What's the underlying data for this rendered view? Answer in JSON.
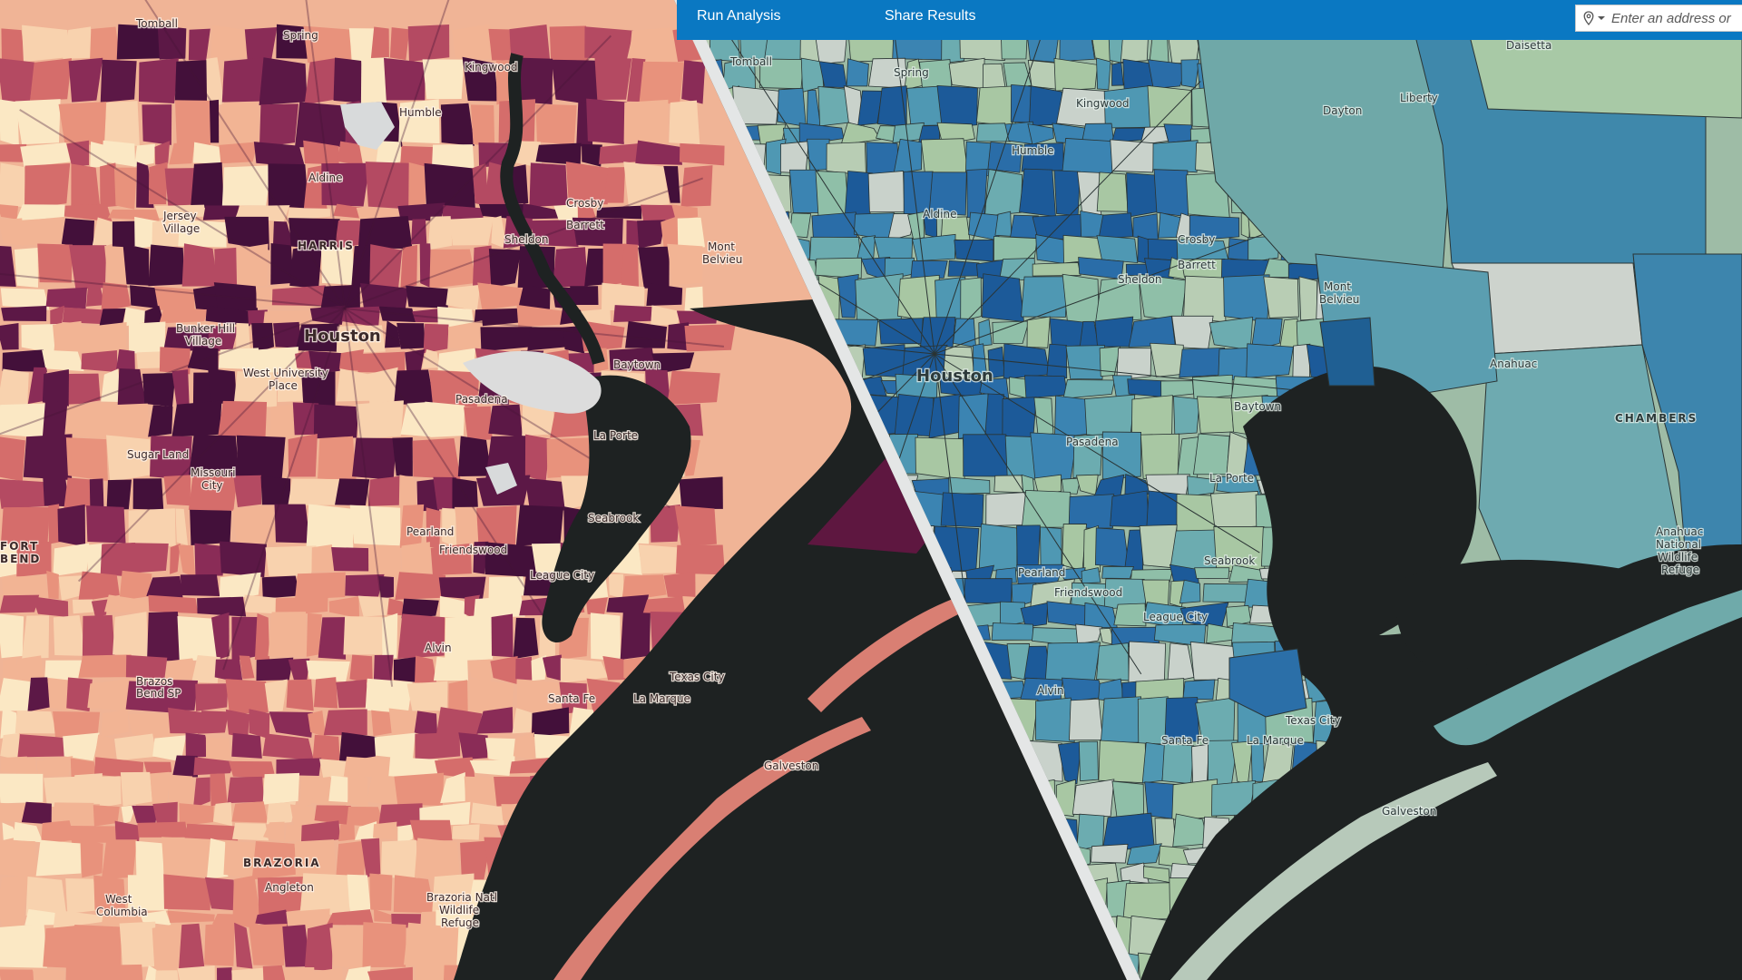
{
  "toolbar": {
    "run_analysis_label": "Run Analysis",
    "share_results_label": "Share Results",
    "search": {
      "placeholder": "Enter an address or",
      "icon": "location-pin-icon",
      "dropdown_icon": "caret-down-icon"
    }
  },
  "left_map": {
    "theme": "red-purple choropleth",
    "labels": {
      "tomball": "Tomball",
      "spring": "Spring",
      "kingwood": "Kingwood",
      "humble": "Humble",
      "aldine": "Aldine",
      "jersey_village_1": "Jersey",
      "jersey_village_2": "Village",
      "harris": "HARRIS",
      "crosby": "Crosby",
      "barrett": "Barrett",
      "sheldon": "Sheldon",
      "mont_belvieu_1": "Mont",
      "mont_belvieu_2": "Belvieu",
      "bunker_hill_1": "Bunker Hill",
      "bunker_hill_2": "Village",
      "houston": "Houston",
      "west_university_1": "West University",
      "west_university_2": "Place",
      "baytown": "Baytown",
      "pasadena": "Pasadena",
      "la_porte": "La Porte",
      "sugar_land": "Sugar Land",
      "missouri_city_1": "Missouri",
      "missouri_city_2": "City",
      "fort_bend_1": "FORT",
      "fort_bend_2": "BEND",
      "pearland": "Pearland",
      "friendswood": "Friendswood",
      "seabrook": "Seabrook",
      "league_city": "League City",
      "alvin": "Alvin",
      "brazos_bend_1": "Brazos",
      "brazos_bend_2": "Bend SP",
      "texas_city": "Texas City",
      "santa_fe": "Santa Fe",
      "la_marque": "La Marque",
      "galveston": "Galveston",
      "brazoria": "BRAZORIA",
      "angleton": "Angleton",
      "west_columbia_1": "West",
      "west_columbia_2": "Columbia",
      "brazoria_refuge_1": "Brazoria Natl",
      "brazoria_refuge_2": "Wildlife",
      "brazoria_refuge_3": "Refuge"
    }
  },
  "right_map": {
    "theme": "blue-green choropleth",
    "labels": {
      "tomball": "Tomball",
      "spring": "Spring",
      "kingwood": "Kingwood",
      "humble": "Humble",
      "aldine": "Aldine",
      "dayton": "Dayton",
      "liberty": "Liberty",
      "daisetta": "Daisetta",
      "crosby": "Crosby",
      "barrett": "Barrett",
      "sheldon": "Sheldon",
      "mont_belvieu_1": "Mont",
      "mont_belvieu_2": "Belvieu",
      "houston": "Houston",
      "anahuac": "Anahuac",
      "baytown": "Baytown",
      "chambers": "CHAMBERS",
      "pasadena": "Pasadena",
      "la_porte": "La Porte",
      "seabrook": "Seabrook",
      "pearland": "Pearland",
      "friendswood": "Friendswood",
      "league_city": "League City",
      "alvin": "Alvin",
      "texas_city": "Texas City",
      "santa_fe": "Santa Fe",
      "la_marque": "La Marque",
      "galveston": "Galveston",
      "anahuac_refuge_1": "Anahuac",
      "anahuac_refuge_2": "National",
      "anahuac_refuge_3": "Wildlife",
      "anahuac_refuge_4": "Refuge"
    }
  },
  "colors": {
    "toolbar_blue": "#0a78c2",
    "water": "#1e2222",
    "divider": "#e4e6e6"
  }
}
